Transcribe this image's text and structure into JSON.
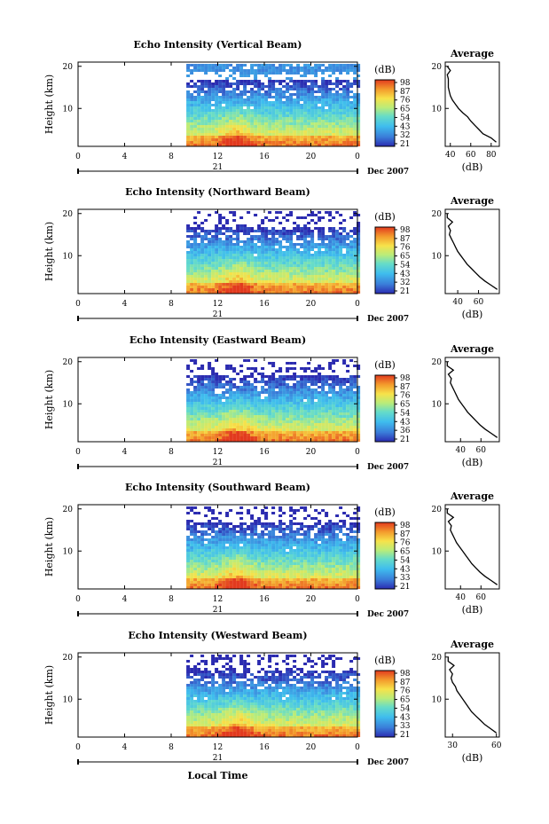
{
  "figure": {
    "xlabel": "Local Time",
    "date_label": "Dec 2007",
    "day_label": "21"
  },
  "chart_data": [
    {
      "type": "heatmap",
      "title": "Echo Intensity (Vertical Beam)",
      "xlabel": "",
      "ylabel": "Height (km)",
      "x_ticks": [
        "0",
        "4",
        "8",
        "12",
        "16",
        "20",
        "0"
      ],
      "xlim": [
        0,
        24
      ],
      "y_ticks": [
        "10",
        "20"
      ],
      "ylim": [
        1,
        21
      ],
      "data_start_hour": 9.3,
      "colorbar": {
        "unit": "(dB)",
        "ticks": [
          "98",
          "87",
          "76",
          "65",
          "54",
          "43",
          "32",
          "21"
        ]
      },
      "avg": {
        "title": "Average",
        "xlabel": "(dB)",
        "x_ticks": [
          "40",
          "60",
          "80"
        ],
        "xlim": [
          35,
          88
        ],
        "y_ticks": [
          "10",
          "20"
        ],
        "heights": [
          2,
          3,
          4,
          5,
          6,
          7,
          8,
          9,
          10,
          11,
          12,
          13,
          14,
          15,
          16,
          17,
          18,
          19,
          20
        ],
        "values": [
          85,
          80,
          72,
          68,
          64,
          60,
          57,
          52,
          48,
          45,
          42,
          40,
          39,
          38,
          38,
          38,
          37,
          40,
          37
        ]
      }
    },
    {
      "type": "heatmap",
      "title": "Echo Intensity (Northward Beam)",
      "xlabel": "",
      "ylabel": "Height (km)",
      "x_ticks": [
        "0",
        "4",
        "8",
        "12",
        "16",
        "20",
        "0"
      ],
      "xlim": [
        0,
        24
      ],
      "y_ticks": [
        "10",
        "20"
      ],
      "ylim": [
        1,
        21
      ],
      "data_start_hour": 9.3,
      "colorbar": {
        "unit": "(dB)",
        "ticks": [
          "98",
          "87",
          "76",
          "65",
          "54",
          "43",
          "32",
          "21"
        ]
      },
      "avg": {
        "title": "Average",
        "xlabel": "(dB)",
        "x_ticks": [
          "40",
          "60"
        ],
        "xlim": [
          28,
          80
        ],
        "heights": [
          2,
          3,
          4,
          5,
          6,
          7,
          8,
          9,
          10,
          11,
          12,
          13,
          14,
          15,
          16,
          17,
          18,
          19,
          20
        ],
        "values": [
          78,
          72,
          66,
          61,
          57,
          53,
          49,
          46,
          43,
          40,
          38,
          36,
          34,
          32,
          33,
          31,
          35,
          30,
          30
        ]
      }
    },
    {
      "type": "heatmap",
      "title": "Echo Intensity (Eastward Beam)",
      "xlabel": "",
      "ylabel": "Height (km)",
      "x_ticks": [
        "0",
        "4",
        "8",
        "12",
        "16",
        "20",
        "0"
      ],
      "xlim": [
        0,
        24
      ],
      "y_ticks": [
        "10",
        "20"
      ],
      "ylim": [
        1,
        21
      ],
      "data_start_hour": 9.3,
      "colorbar": {
        "unit": "(dB)",
        "ticks": [
          "98",
          "87",
          "76",
          "65",
          "54",
          "43",
          "36",
          "21"
        ]
      },
      "avg": {
        "title": "Average",
        "xlabel": "(dB)",
        "x_ticks": [
          "40",
          "60"
        ],
        "xlim": [
          25,
          78
        ],
        "heights": [
          2,
          3,
          4,
          5,
          6,
          7,
          8,
          9,
          10,
          11,
          12,
          13,
          14,
          15,
          16,
          17,
          18,
          19,
          20
        ],
        "values": [
          76,
          70,
          64,
          59,
          55,
          51,
          47,
          44,
          41,
          38,
          36,
          34,
          32,
          30,
          31,
          28,
          33,
          27,
          27
        ]
      }
    },
    {
      "type": "heatmap",
      "title": "Echo Intensity (Southward Beam)",
      "xlabel": "",
      "ylabel": "Height (km)",
      "x_ticks": [
        "0",
        "4",
        "8",
        "12",
        "16",
        "20",
        "0"
      ],
      "xlim": [
        0,
        24
      ],
      "y_ticks": [
        "10",
        "20"
      ],
      "ylim": [
        1,
        21
      ],
      "data_start_hour": 9.3,
      "colorbar": {
        "unit": "(dB)",
        "ticks": [
          "98",
          "87",
          "76",
          "65",
          "54",
          "43",
          "33",
          "21"
        ]
      },
      "avg": {
        "title": "Average",
        "xlabel": "(dB)",
        "x_ticks": [
          "40",
          "60"
        ],
        "xlim": [
          25,
          78
        ],
        "heights": [
          2,
          3,
          4,
          5,
          6,
          7,
          8,
          9,
          10,
          11,
          12,
          13,
          14,
          15,
          16,
          17,
          18,
          19,
          20
        ],
        "values": [
          76,
          70,
          64,
          59,
          55,
          51,
          48,
          45,
          42,
          39,
          36,
          34,
          32,
          30,
          31,
          28,
          33,
          27,
          27
        ]
      }
    },
    {
      "type": "heatmap",
      "title": "Echo Intensity (Westward Beam)",
      "xlabel": "Local Time",
      "ylabel": "Height (km)",
      "x_ticks": [
        "0",
        "4",
        "8",
        "12",
        "16",
        "20",
        "0"
      ],
      "xlim": [
        0,
        24
      ],
      "y_ticks": [
        "10",
        "20"
      ],
      "ylim": [
        1,
        21
      ],
      "data_start_hour": 9.3,
      "colorbar": {
        "unit": "(dB)",
        "ticks": [
          "98",
          "87",
          "76",
          "65",
          "54",
          "43",
          "33",
          "21"
        ]
      },
      "avg": {
        "title": "Average",
        "xlabel": "(dB)",
        "x_ticks": [
          "30",
          "60"
        ],
        "xlim": [
          25,
          62
        ],
        "heights": [
          2,
          3,
          4,
          5,
          6,
          7,
          8,
          9,
          10,
          11,
          12,
          13,
          14,
          15,
          16,
          17,
          18,
          19,
          20
        ],
        "values": [
          60,
          56,
          52,
          49,
          46,
          43,
          41,
          39,
          37,
          35,
          33,
          32,
          30,
          29,
          30,
          28,
          31,
          27,
          27
        ]
      }
    }
  ]
}
